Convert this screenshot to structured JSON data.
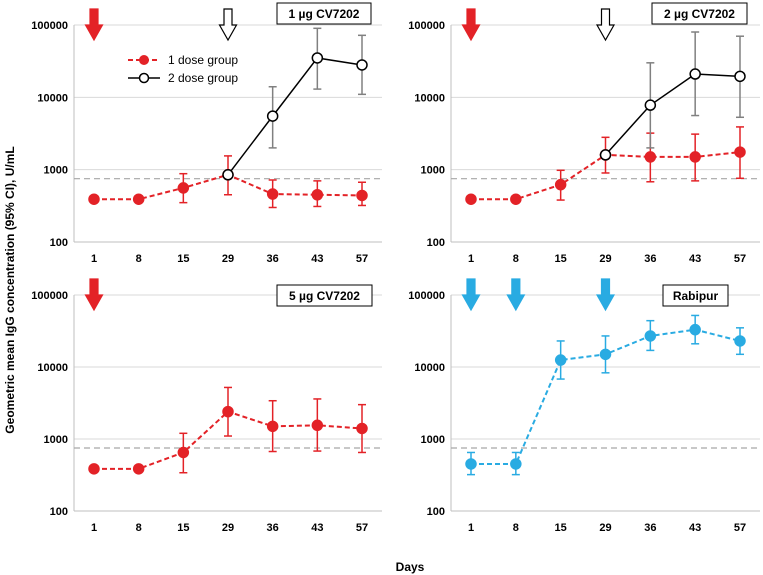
{
  "chart_data": {
    "type": "line",
    "y_axis_label": "Geometric mean IgG concentration (95% CI), U/mL",
    "x_axis_label": "Days",
    "y_scale": "log",
    "ylim": [
      100,
      100000
    ],
    "y_ticks": [
      "100",
      "1000",
      "10000",
      "100000"
    ],
    "x_categories": [
      "1",
      "8",
      "15",
      "29",
      "36",
      "43",
      "57"
    ],
    "threshold": 750,
    "colors": {
      "one_dose": "#e32227",
      "two_dose": "#000000",
      "rabipur": "#29abe2",
      "threshold": "#a6a6a6"
    },
    "legend": [
      "1 dose group",
      "2 dose group"
    ],
    "panels": [
      {
        "title": "1 µg CV7202",
        "arrows": [
          {
            "day": "1",
            "style": "filled",
            "color": "#e32227"
          },
          {
            "day": "29",
            "style": "open",
            "color": "#000000"
          }
        ],
        "series": [
          {
            "name": "1 dose group",
            "style": "dashed-filled",
            "color": "#e32227",
            "values": [
              390,
              390,
              560,
              850,
              460,
              450,
              440
            ],
            "ci_low": [
              390,
              390,
              350,
              450,
              300,
              310,
              320
            ],
            "ci_high": [
              390,
              390,
              880,
              1550,
              720,
              700,
              670
            ]
          },
          {
            "name": "2 dose group",
            "style": "solid-open",
            "color": "#000000",
            "start_index": 3,
            "values": [
              850,
              5500,
              35000,
              28000
            ],
            "ci_low": [
              850,
              2000,
              13000,
              11000
            ],
            "ci_high": [
              850,
              14000,
              90000,
              72000
            ]
          }
        ]
      },
      {
        "title": "2 µg CV7202",
        "arrows": [
          {
            "day": "1",
            "style": "filled",
            "color": "#e32227"
          },
          {
            "day": "29",
            "style": "open",
            "color": "#000000"
          }
        ],
        "series": [
          {
            "name": "1 dose group",
            "style": "dashed-filled",
            "color": "#e32227",
            "values": [
              390,
              390,
              620,
              1600,
              1500,
              1500,
              1750
            ],
            "ci_low": [
              390,
              390,
              380,
              900,
              680,
              700,
              760
            ],
            "ci_high": [
              390,
              390,
              980,
              2800,
              3200,
              3100,
              3900
            ]
          },
          {
            "name": "2 dose group",
            "style": "solid-open",
            "color": "#000000",
            "start_index": 3,
            "values": [
              1600,
              7800,
              21000,
              19500
            ],
            "ci_low": [
              1600,
              2000,
              5600,
              5300
            ],
            "ci_high": [
              1600,
              30000,
              80000,
              70000
            ]
          }
        ]
      },
      {
        "title": "5 µg CV7202",
        "arrows": [
          {
            "day": "1",
            "style": "filled",
            "color": "#e32227"
          }
        ],
        "series": [
          {
            "name": "1 dose group",
            "style": "dashed-filled",
            "color": "#e32227",
            "values": [
              385,
              385,
              650,
              2400,
              1500,
              1550,
              1400
            ],
            "ci_low": [
              385,
              385,
              340,
              1100,
              670,
              680,
              650
            ],
            "ci_high": [
              385,
              385,
              1200,
              5200,
              3400,
              3600,
              3000
            ]
          }
        ]
      },
      {
        "title": "Rabipur",
        "arrows": [
          {
            "day": "1",
            "style": "filled",
            "color": "#29abe2"
          },
          {
            "day": "8",
            "style": "filled",
            "color": "#29abe2"
          },
          {
            "day": "29",
            "style": "filled",
            "color": "#29abe2"
          }
        ],
        "series": [
          {
            "name": "Rabipur",
            "style": "dashed-filled",
            "color": "#29abe2",
            "values": [
              450,
              450,
              12500,
              15000,
              27000,
              33000,
              23000
            ],
            "ci_low": [
              320,
              320,
              6800,
              8300,
              17000,
              21000,
              15000
            ],
            "ci_high": [
              650,
              650,
              23000,
              27000,
              44000,
              52000,
              35000
            ]
          }
        ]
      }
    ]
  }
}
